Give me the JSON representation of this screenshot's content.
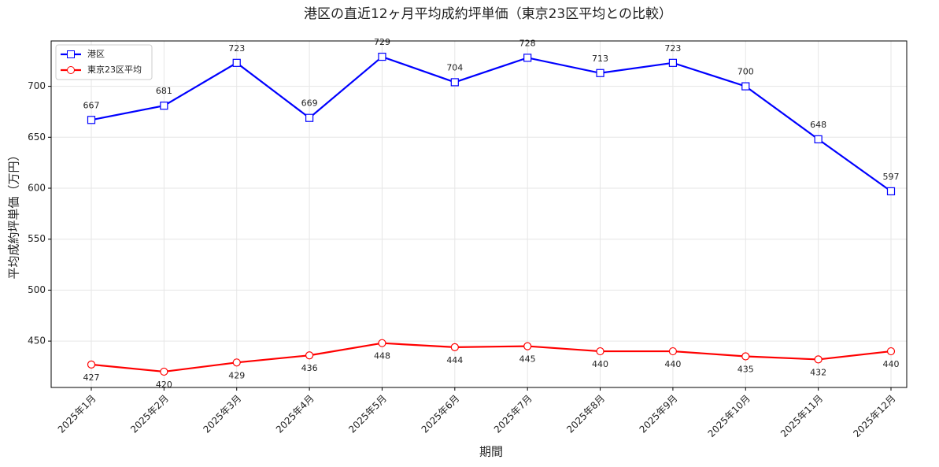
{
  "chart_data": {
    "type": "line",
    "title": "港区の直近12ヶ月平均成約坪単価（東京23区平均との比較）",
    "x_label": "期間",
    "y_label": "平均成約坪単価（万円）",
    "categories": [
      "2025年1月",
      "2025年2月",
      "2025年3月",
      "2025年4月",
      "2025年5月",
      "2025年6月",
      "2025年7月",
      "2025年8月",
      "2025年9月",
      "2025年10月",
      "2025年11月",
      "2025年12月"
    ],
    "series": [
      {
        "name": "港区",
        "color": "#0000ff",
        "marker": "square",
        "label_position": "above",
        "values": [
          667,
          681,
          723,
          669,
          729,
          704,
          728,
          713,
          723,
          700,
          648,
          597
        ]
      },
      {
        "name": "東京23区平均",
        "color": "#ff0000",
        "marker": "circle",
        "label_position": "below",
        "values": [
          427,
          420,
          429,
          436,
          448,
          444,
          445,
          440,
          440,
          435,
          432,
          440
        ]
      }
    ],
    "ylim": [
      404.5,
      744.5
    ],
    "yticks": [
      450,
      500,
      550,
      600,
      650,
      700
    ],
    "grid": true,
    "legend": "upper-left"
  }
}
